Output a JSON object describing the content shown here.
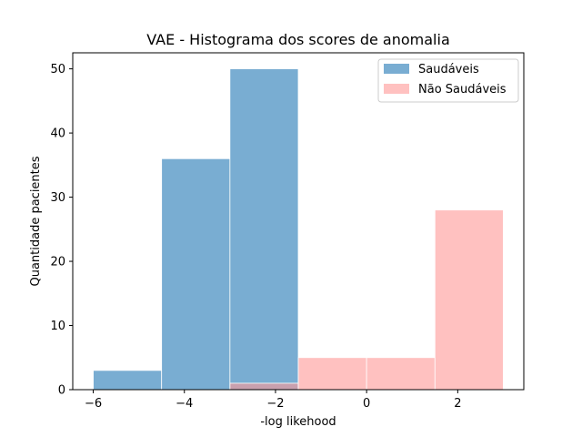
{
  "chart_data": {
    "type": "bar",
    "title": "VAE - Histograma dos scores de anomalia",
    "xlabel": "-log likehood",
    "ylabel": "Quantidade pacientes",
    "xlim": [
      -6.45,
      3.45
    ],
    "ylim": [
      0,
      52.5
    ],
    "xticks": [
      -6,
      -4,
      -2,
      0,
      2
    ],
    "xtick_labels": [
      "−6",
      "−4",
      "−2",
      "0",
      "2"
    ],
    "yticks": [
      0,
      10,
      20,
      30,
      40,
      50
    ],
    "ytick_labels": [
      "0",
      "10",
      "20",
      "30",
      "40",
      "50"
    ],
    "bin_edges": [
      -6,
      -4.5,
      -3,
      -1.5,
      0,
      1.5,
      3
    ],
    "grid": false,
    "legend_position": "upper right",
    "series": [
      {
        "name": "Saudáveis",
        "color": "#1f77b4",
        "alpha": 0.6,
        "values": [
          3,
          36,
          50,
          0,
          0,
          0
        ]
      },
      {
        "name": "Não Saudáveis",
        "color": "#ff9896",
        "alpha": 0.6,
        "values": [
          0,
          0,
          1,
          5,
          5,
          28
        ]
      }
    ]
  }
}
